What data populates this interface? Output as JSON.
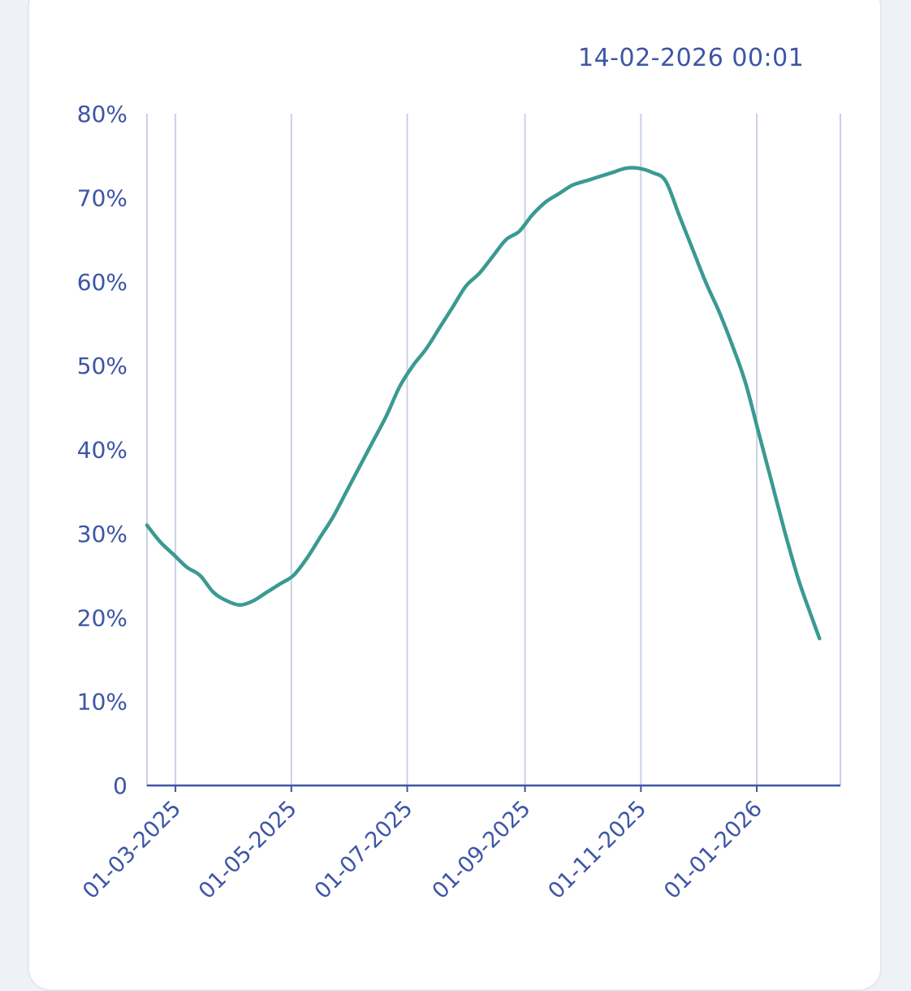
{
  "timestamp": "14-02-2026 00:01",
  "colors": {
    "line": "#3a9a91",
    "grid": "#c9d2e3",
    "axis": "#3e55a5",
    "text": "#3e55a5"
  },
  "chart_data": {
    "type": "line",
    "title": "",
    "xlabel": "",
    "ylabel": "",
    "grid": "vertical",
    "legend": "none",
    "xlim": [
      "2025-02-14",
      "2026-02-14"
    ],
    "ylim": [
      0,
      80
    ],
    "y_ticks": [
      {
        "value": 0,
        "label": "0"
      },
      {
        "value": 10,
        "label": "10%"
      },
      {
        "value": 20,
        "label": "20%"
      },
      {
        "value": 30,
        "label": "30%"
      },
      {
        "value": 40,
        "label": "40%"
      },
      {
        "value": 50,
        "label": "50%"
      },
      {
        "value": 60,
        "label": "60%"
      },
      {
        "value": 70,
        "label": "70%"
      },
      {
        "value": 80,
        "label": "80%"
      }
    ],
    "x_ticks": [
      {
        "date": "2025-03-01",
        "label": "01-03-2025"
      },
      {
        "date": "2025-05-01",
        "label": "01-05-2025"
      },
      {
        "date": "2025-07-01",
        "label": "01-07-2025"
      },
      {
        "date": "2025-09-01",
        "label": "01-09-2025"
      },
      {
        "date": "2025-11-01",
        "label": "01-11-2025"
      },
      {
        "date": "2026-01-01",
        "label": "01-01-2026"
      }
    ],
    "series": [
      {
        "points": [
          [
            "2025-02-14",
            31.0
          ],
          [
            "2025-02-21",
            29.0
          ],
          [
            "2025-02-28",
            27.5
          ],
          [
            "2025-03-07",
            26.0
          ],
          [
            "2025-03-14",
            25.0
          ],
          [
            "2025-03-21",
            23.0
          ],
          [
            "2025-03-28",
            22.0
          ],
          [
            "2025-04-04",
            21.5
          ],
          [
            "2025-04-11",
            22.0
          ],
          [
            "2025-04-18",
            23.0
          ],
          [
            "2025-04-25",
            24.0
          ],
          [
            "2025-05-02",
            25.0
          ],
          [
            "2025-05-09",
            27.0
          ],
          [
            "2025-05-16",
            29.5
          ],
          [
            "2025-05-23",
            32.0
          ],
          [
            "2025-05-30",
            35.0
          ],
          [
            "2025-06-06",
            38.0
          ],
          [
            "2025-06-13",
            41.0
          ],
          [
            "2025-06-20",
            44.0
          ],
          [
            "2025-06-27",
            47.5
          ],
          [
            "2025-07-04",
            50.0
          ],
          [
            "2025-07-11",
            52.0
          ],
          [
            "2025-07-18",
            54.5
          ],
          [
            "2025-07-25",
            57.0
          ],
          [
            "2025-08-01",
            59.5
          ],
          [
            "2025-08-08",
            61.0
          ],
          [
            "2025-08-15",
            63.0
          ],
          [
            "2025-08-22",
            65.0
          ],
          [
            "2025-08-29",
            66.0
          ],
          [
            "2025-09-05",
            68.0
          ],
          [
            "2025-09-12",
            69.5
          ],
          [
            "2025-09-19",
            70.5
          ],
          [
            "2025-09-26",
            71.5
          ],
          [
            "2025-10-03",
            72.0
          ],
          [
            "2025-10-10",
            72.5
          ],
          [
            "2025-10-17",
            73.0
          ],
          [
            "2025-10-24",
            73.5
          ],
          [
            "2025-10-31",
            73.5
          ],
          [
            "2025-11-07",
            73.0
          ],
          [
            "2025-11-14",
            72.0
          ],
          [
            "2025-11-21",
            68.0
          ],
          [
            "2025-11-28",
            64.0
          ],
          [
            "2025-12-05",
            60.0
          ],
          [
            "2025-12-12",
            56.5
          ],
          [
            "2025-12-19",
            52.5
          ],
          [
            "2025-12-26",
            48.0
          ],
          [
            "2026-01-02",
            42.0
          ],
          [
            "2026-01-09",
            36.0
          ],
          [
            "2026-01-16",
            30.0
          ],
          [
            "2026-01-23",
            24.5
          ],
          [
            "2026-01-30",
            20.0
          ],
          [
            "2026-02-03",
            17.5
          ]
        ]
      }
    ]
  }
}
